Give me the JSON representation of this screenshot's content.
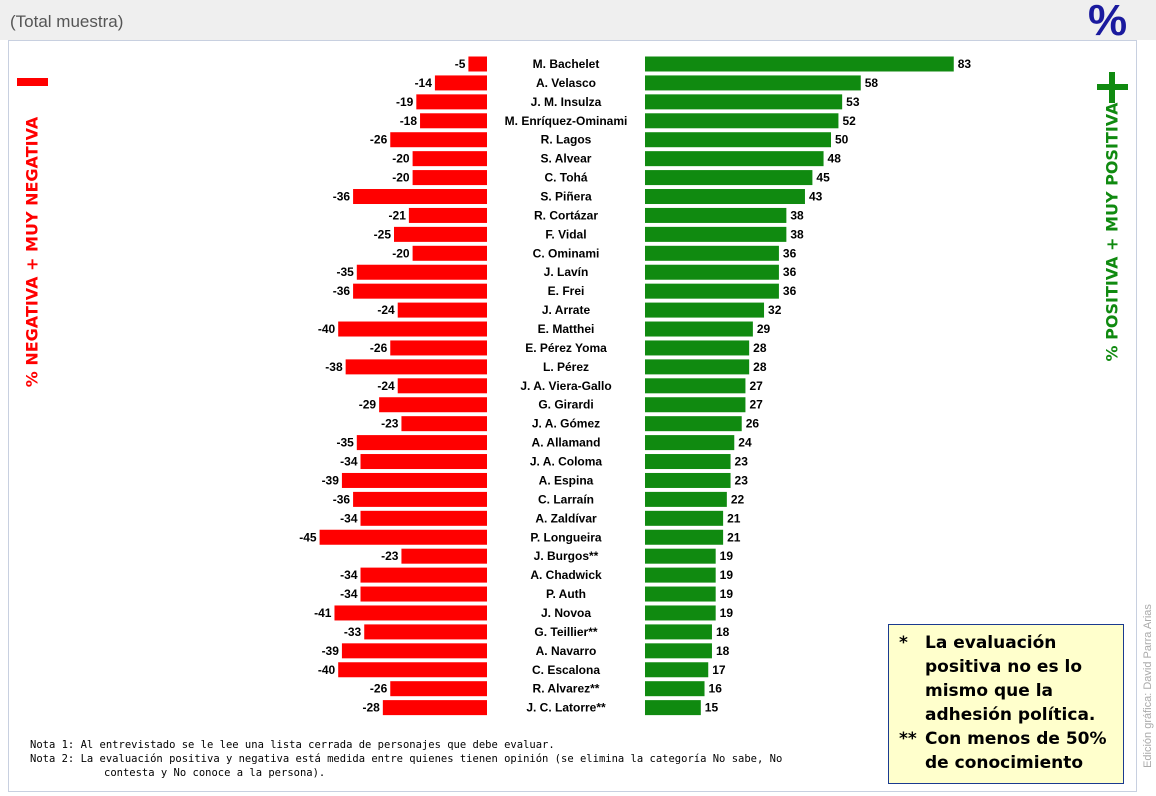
{
  "subtitle": "(Total muestra)",
  "unit_symbol": "%",
  "colors": {
    "negative": "#ff0000",
    "positive": "#108a10",
    "unit": "#1a1a9e"
  },
  "chart_data": {
    "type": "bar",
    "orientation": "horizontal-diverging",
    "categories": [
      "M. Bachelet",
      "A. Velasco",
      "J. M. Insulza",
      "M. Enríquez-Ominami",
      "R. Lagos",
      "S. Alvear",
      "C. Tohá",
      "S. Piñera",
      "R. Cortázar",
      "F. Vidal",
      "C. Ominami",
      "J. Lavín",
      "E. Frei",
      "J. Arrate",
      "E. Matthei",
      "E. Pérez Yoma",
      "L. Pérez",
      "J. A. Viera-Gallo",
      "G. Girardi",
      "J. A. Gómez",
      "A. Allamand",
      "J. A. Coloma",
      "A. Espina",
      "C. Larraín",
      "A. Zaldívar",
      "P. Longueira",
      "J. Burgos**",
      "A. Chadwick",
      "P. Auth",
      "J. Novoa",
      "G. Teillier**",
      "A. Navarro",
      "C. Escalona",
      "R. Alvarez**",
      "J. C. Latorre**"
    ],
    "series": [
      {
        "name": "% NEGATIVA + MUY NEGATIVA",
        "color": "#ff0000",
        "values": [
          -5,
          -14,
          -19,
          -18,
          -26,
          -20,
          -20,
          -36,
          -21,
          -25,
          -20,
          -35,
          -36,
          -24,
          -40,
          -26,
          -38,
          -24,
          -29,
          -23,
          -35,
          -34,
          -39,
          -36,
          -34,
          -45,
          -23,
          -34,
          -34,
          -41,
          -33,
          -39,
          -40,
          -26,
          -28
        ]
      },
      {
        "name": "% POSITIVA + MUY POSITIVA",
        "color": "#108a10",
        "values": [
          83,
          58,
          53,
          52,
          50,
          48,
          45,
          43,
          38,
          38,
          36,
          36,
          36,
          32,
          29,
          28,
          28,
          27,
          27,
          26,
          24,
          23,
          23,
          22,
          21,
          21,
          19,
          19,
          19,
          19,
          18,
          18,
          17,
          16,
          15
        ]
      }
    ],
    "negative_label": "% NEGATIVA + MUY NEGATIVA",
    "positive_label": "% POSITIVA + MUY POSITIVA",
    "minus_symbol": "−",
    "plus_symbol": "+",
    "grid": false
  },
  "notes": {
    "note1": "Nota 1: Al entrevistado se le lee una lista cerrada de personajes que debe evaluar.",
    "note2_line1": "Nota 2: La evaluación positiva y negativa está medida entre quienes tienen opinión (se elimina la categoría No sabe, No",
    "note2_line2": "contesta y No conoce a la persona)."
  },
  "footnote_box": {
    "mark1": "*",
    "lines1": [
      "La evaluación",
      "positiva no es lo",
      "mismo que la",
      "adhesión política."
    ],
    "mark2": "**",
    "lines2": [
      "Con menos de 50%",
      "de conocimiento"
    ]
  },
  "credit": "Edición gráfica: David Parra Arias"
}
